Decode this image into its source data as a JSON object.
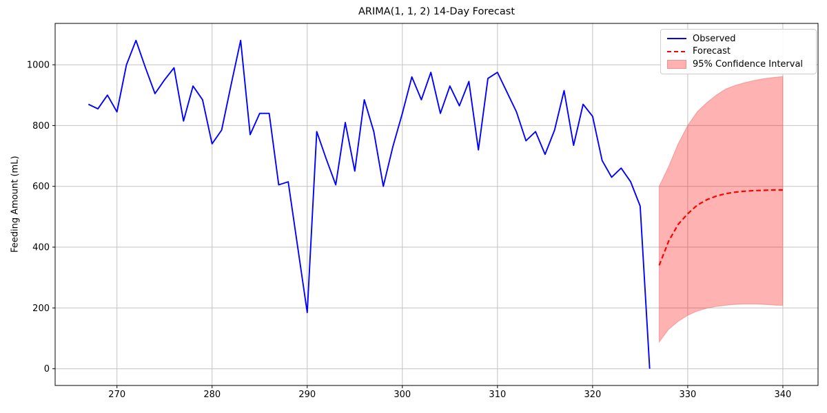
{
  "chart_data": {
    "type": "line",
    "title": "ARIMA(1, 1, 2) 14-Day Forecast",
    "xlabel": "",
    "ylabel": "Feeding Amount (mL)",
    "xlim": [
      263.5,
      343.7
    ],
    "ylim": [
      -55,
      1136
    ],
    "x_ticks": [
      270,
      280,
      290,
      300,
      310,
      320,
      330,
      340
    ],
    "y_ticks": [
      0,
      200,
      400,
      600,
      800,
      1000
    ],
    "grid": true,
    "legend_position": "upper right",
    "colors": {
      "observed": "#0000ff",
      "forecast": "#ff0000",
      "ci_fill": "rgba(255,0,0,0.30)",
      "ci_edge": "rgba(236,120,120,0.55)",
      "grid": "#c2c2c2",
      "spine": "#000000",
      "text": "#000000"
    },
    "series": [
      {
        "name": "Observed",
        "type": "line",
        "style": "solid",
        "x": [
          267,
          268,
          269,
          270,
          271,
          272,
          273,
          274,
          275,
          276,
          277,
          278,
          279,
          280,
          281,
          282,
          283,
          284,
          285,
          286,
          287,
          288,
          289,
          290,
          291,
          292,
          293,
          294,
          295,
          296,
          297,
          298,
          299,
          300,
          301,
          302,
          303,
          304,
          305,
          306,
          307,
          308,
          309,
          310,
          311,
          312,
          313,
          314,
          315,
          316,
          317,
          318,
          319,
          320,
          321,
          322,
          323,
          324,
          325,
          326
        ],
        "y": [
          870,
          855,
          900,
          845,
          1000,
          1080,
          990,
          905,
          950,
          990,
          815,
          930,
          885,
          740,
          785,
          935,
          1080,
          770,
          840,
          840,
          605,
          615,
          400,
          185,
          780,
          690,
          605,
          810,
          650,
          885,
          780,
          600,
          730,
          840,
          960,
          885,
          975,
          840,
          930,
          865,
          945,
          720,
          955,
          975,
          910,
          845,
          750,
          780,
          705,
          785,
          915,
          735,
          870,
          830,
          685,
          630,
          660,
          615,
          535,
          0
        ]
      },
      {
        "name": "Forecast",
        "type": "line",
        "style": "dashed",
        "x": [
          327,
          328,
          329,
          330,
          331,
          332,
          333,
          334,
          335,
          336,
          337,
          338,
          339,
          340
        ],
        "y": [
          340,
          420,
          475,
          510,
          538,
          556,
          568,
          576,
          581,
          584,
          586,
          587,
          588,
          588
        ]
      },
      {
        "name": "95% Confidence Interval",
        "type": "band",
        "x": [
          327,
          328,
          329,
          330,
          331,
          332,
          333,
          334,
          335,
          336,
          337,
          338,
          339,
          340
        ],
        "lower": [
          88,
          130,
          156,
          176,
          190,
          199,
          205,
          209,
          212,
          213,
          213,
          212,
          210,
          208
        ],
        "upper": [
          600,
          665,
          740,
          800,
          845,
          875,
          900,
          920,
          932,
          941,
          948,
          954,
          958,
          961
        ]
      }
    ]
  }
}
